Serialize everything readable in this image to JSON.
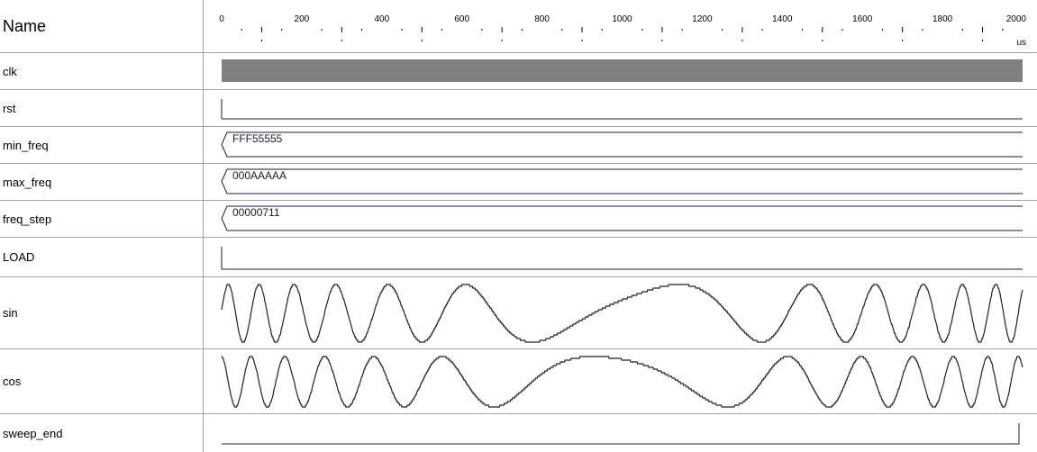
{
  "header": {
    "name_label": "Name",
    "unit": "us"
  },
  "timeline": {
    "min": 0,
    "max": 2000,
    "major_ticks": [
      0,
      200,
      400,
      600,
      800,
      1000,
      1200,
      1400,
      1600,
      1800,
      2000
    ]
  },
  "colors": {
    "wave": "#1a1a4a",
    "clock_fill": "#808080",
    "grid": "#a0a0a0"
  },
  "signals": [
    {
      "name": "clk",
      "kind": "clock"
    },
    {
      "name": "rst",
      "kind": "bit",
      "level": 0
    },
    {
      "name": "min_freq",
      "kind": "bus",
      "value": "FFF55555"
    },
    {
      "name": "max_freq",
      "kind": "bus",
      "value": "000AAAAA"
    },
    {
      "name": "freq_step",
      "kind": "bus",
      "value": "00000711"
    },
    {
      "name": "LOAD",
      "kind": "bit",
      "level": 0
    },
    {
      "name": "sin",
      "kind": "analog",
      "phase": "sin"
    },
    {
      "name": "cos",
      "kind": "analog",
      "phase": "cos"
    },
    {
      "name": "sweep_end",
      "kind": "bit",
      "level": 0,
      "rise_at": 2000
    }
  ]
}
